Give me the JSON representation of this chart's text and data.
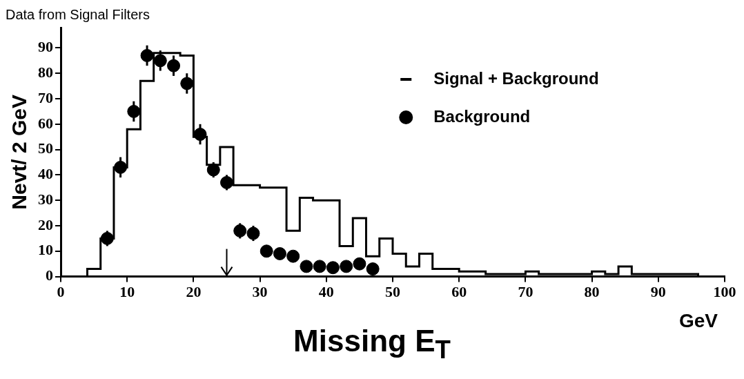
{
  "chart_data": {
    "type": "histogram",
    "title": "Data from Signal Filters",
    "xlabel": "Missing E$_{T}$",
    "ylabel": "Nevt/ 2 GeV",
    "annotations": [
      "GeV"
    ],
    "xlim": [
      0,
      100
    ],
    "xticks": [
      0,
      10,
      20,
      30,
      40,
      50,
      60,
      70,
      80,
      90,
      100
    ],
    "ylim": [
      0,
      98
    ],
    "yticks": [
      0,
      10,
      20,
      30,
      40,
      50,
      60,
      70,
      80,
      90
    ],
    "legend": "top right",
    "grid": false,
    "series": [
      {
        "name": "Signal + Background",
        "type": "histogram",
        "color": "#000000",
        "bins": [
          0,
          2,
          4,
          6,
          8,
          10,
          12,
          14,
          16,
          18,
          20,
          22,
          24,
          26,
          28,
          30,
          32,
          34,
          36,
          38,
          40,
          42,
          44,
          46,
          48,
          50,
          52,
          54,
          56,
          58,
          60,
          62,
          64,
          66,
          68,
          70,
          72,
          74,
          76,
          78,
          80,
          82,
          84,
          86,
          88,
          90,
          92,
          94,
          96,
          98,
          100
        ],
        "values": [
          0,
          0,
          3,
          15,
          43,
          58,
          77,
          88,
          88,
          87,
          55,
          44,
          51,
          36,
          36,
          35,
          35,
          18,
          31,
          30,
          30,
          12,
          23,
          8,
          15,
          9,
          4,
          9,
          3,
          3,
          2,
          2,
          1,
          1,
          1,
          2,
          1,
          1,
          1,
          1,
          2,
          1,
          4,
          1,
          1,
          1,
          1,
          1,
          0,
          0
        ]
      },
      {
        "name": "Background",
        "type": "scatter",
        "marker": "circle",
        "color": "#000000",
        "x": [
          7,
          9,
          11,
          13,
          15,
          17,
          19,
          21,
          23,
          25,
          27,
          29,
          31,
          33,
          35,
          37,
          39,
          41,
          43,
          45,
          47
        ],
        "values": [
          15,
          43,
          65,
          87,
          85,
          83,
          76,
          56,
          42,
          37,
          18,
          17,
          10,
          9,
          8,
          4,
          4,
          3.5,
          4,
          5,
          3
        ],
        "errors": [
          3,
          4,
          4,
          4,
          4,
          4,
          4,
          4,
          3,
          3,
          3,
          3,
          2,
          2,
          2,
          2,
          2,
          2,
          2,
          2,
          2
        ]
      }
    ],
    "ref_lines": [
      {
        "axis": "x",
        "value": 25,
        "line_style": "solid"
      }
    ]
  }
}
